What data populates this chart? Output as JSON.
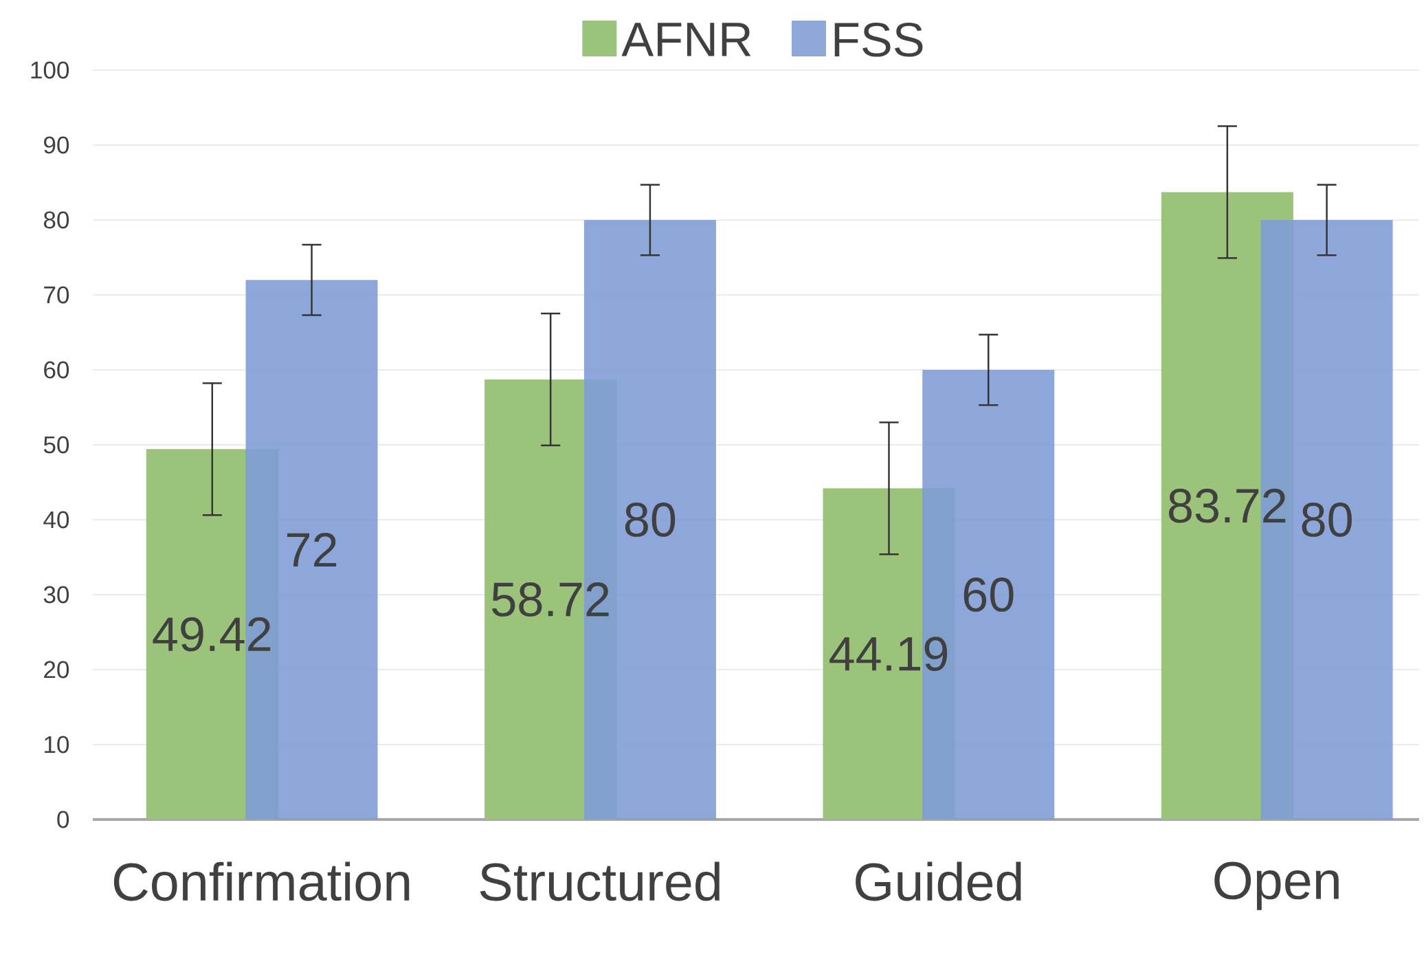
{
  "chart_data": {
    "type": "bar",
    "categories": [
      "Confirmation",
      "Structured",
      "Guided",
      "Open"
    ],
    "series": [
      {
        "name": "AFNR",
        "color": "#9bc47a",
        "values": [
          49.42,
          58.72,
          44.19,
          83.72
        ],
        "errors": [
          8.8,
          8.8,
          8.8,
          8.8
        ],
        "value_labels": [
          "49.42",
          "58.72",
          "44.19",
          "83.72"
        ]
      },
      {
        "name": "FSS",
        "color": "#7d9bd6",
        "values": [
          72,
          80,
          60,
          80
        ],
        "errors": [
          4.7,
          4.7,
          4.7,
          4.7
        ],
        "value_labels": [
          "72",
          "80",
          "60",
          "80"
        ]
      }
    ],
    "ylim": [
      0,
      100
    ],
    "yticks": [
      0,
      10,
      20,
      30,
      40,
      50,
      60,
      70,
      80,
      90,
      100
    ],
    "grid": "y",
    "legend": "top"
  }
}
